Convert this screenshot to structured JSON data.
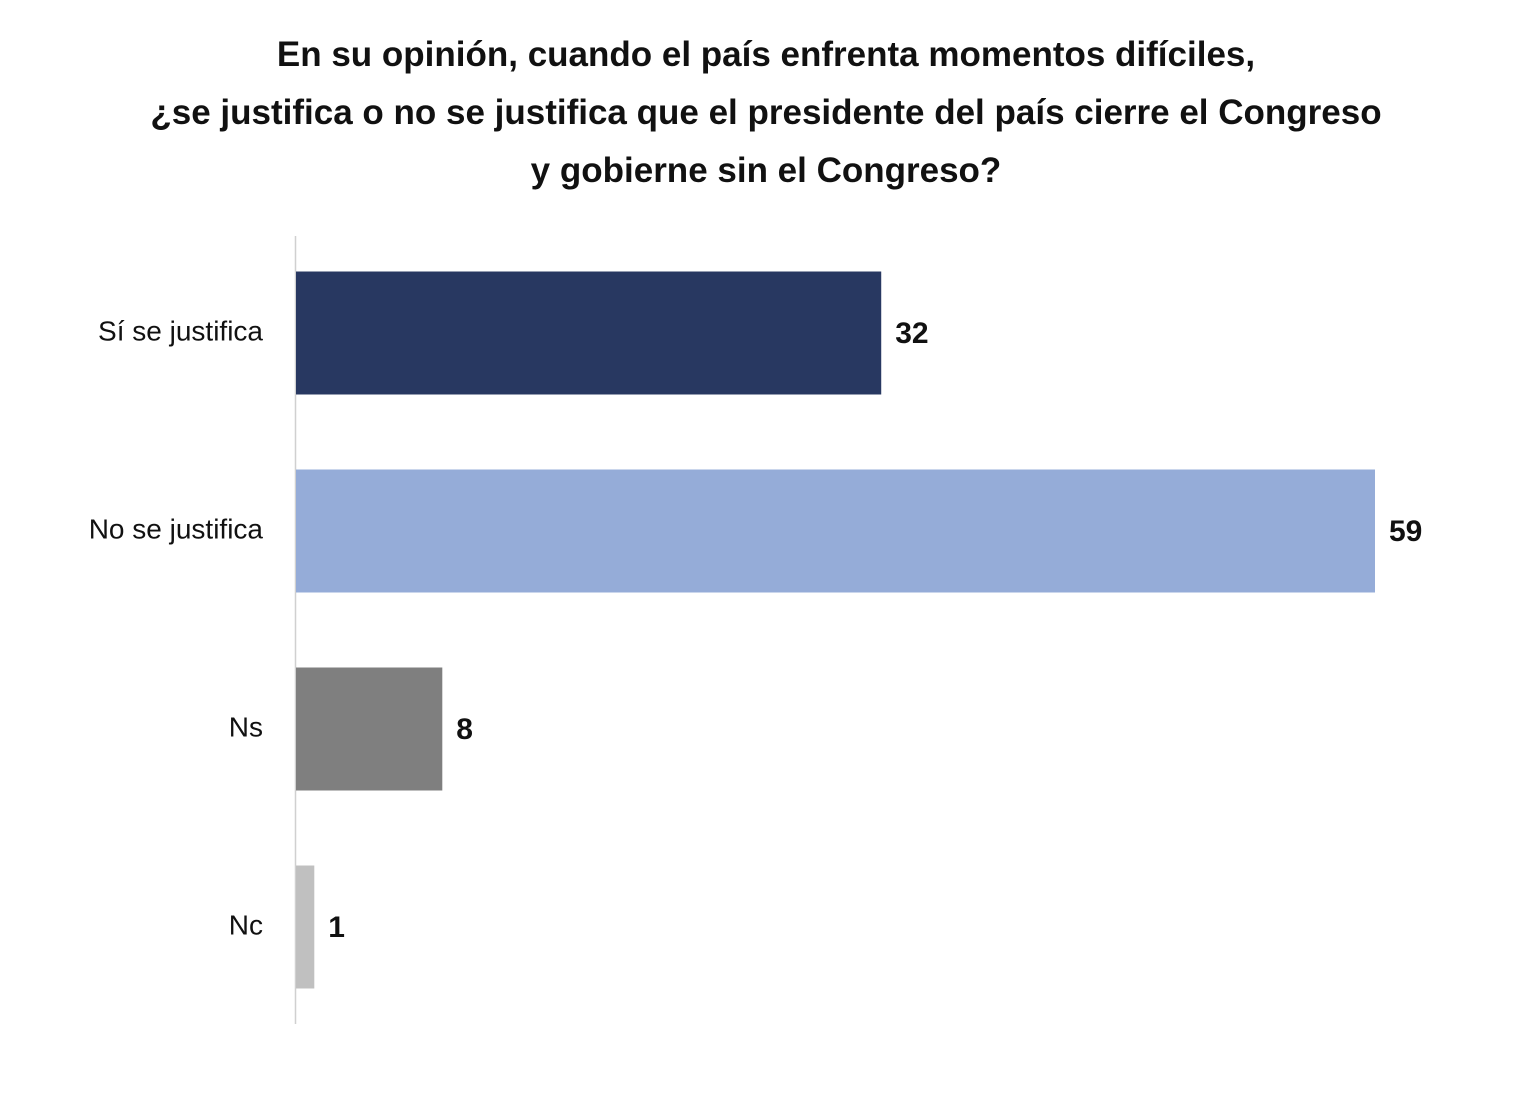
{
  "chart_data": {
    "type": "bar",
    "orientation": "horizontal",
    "title_lines": [
      "En su opinión, cuando el país enfrenta momentos difíciles,",
      "¿se justifica o no se justifica que el presidente del país cierre el Congreso",
      "y gobierne sin el Congreso?"
    ],
    "categories": [
      "Sí se justifica",
      "No se justifica",
      "Ns",
      "Nc"
    ],
    "values": [
      32,
      59,
      8,
      1
    ],
    "colors": [
      "#283861",
      "#95acd8",
      "#7f7f7f",
      "#c0c0c0"
    ],
    "xlim": [
      0,
      60
    ],
    "grid": false,
    "legend": "none",
    "data_labels": true
  }
}
